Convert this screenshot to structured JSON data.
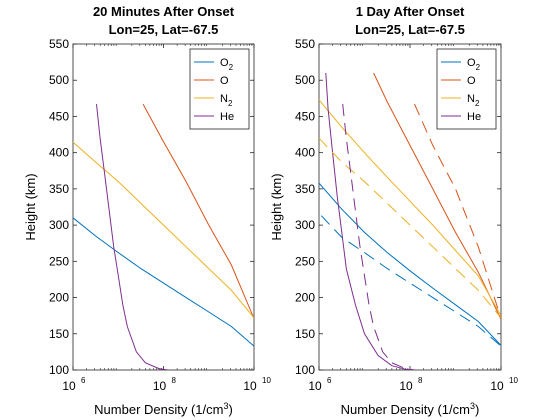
{
  "chart_data": [
    {
      "type": "line",
      "title_line1": "20 Minutes After Onset",
      "title_line2": "Lon=25, Lat=-67.5",
      "xlabel_main": "Number Density (1/cm",
      "xlabel_sup": "3",
      "xlabel_end": ")",
      "ylabel": "Height (km)",
      "xscale": "log",
      "xlim_exp": [
        6,
        10
      ],
      "ylim": [
        100,
        550
      ],
      "xticks": [
        {
          "base": "10",
          "exp": "6",
          "e": 6
        },
        {
          "base": "10",
          "exp": "8",
          "e": 8
        },
        {
          "base": "10",
          "exp": "10",
          "e": 10
        }
      ],
      "yticks": [
        100,
        150,
        200,
        250,
        300,
        350,
        400,
        450,
        500,
        550
      ],
      "legend_position": "top-right",
      "series": [
        {
          "name": "O",
          "name_sub": "2",
          "color": "#0072BD",
          "dash": "solid",
          "points": [
            [
              5.9,
              315
            ],
            [
              6.5,
              285
            ],
            [
              7.0,
              262
            ],
            [
              7.5,
              240
            ],
            [
              8.0,
              220
            ],
            [
              8.5,
              200
            ],
            [
              9.0,
              180
            ],
            [
              9.5,
              160
            ],
            [
              10.0,
              133
            ]
          ]
        },
        {
          "name": "O",
          "name_sub": "",
          "color": "#D95319",
          "dash": "solid",
          "points": [
            [
              7.55,
              467
            ],
            [
              8.0,
              415
            ],
            [
              8.5,
              360
            ],
            [
              9.0,
              300
            ],
            [
              9.5,
              245
            ],
            [
              10.0,
              171
            ]
          ]
        },
        {
          "name": "N",
          "name_sub": "2",
          "color": "#EDB120",
          "dash": "solid",
          "points": [
            [
              5.9,
              420
            ],
            [
              6.5,
              387
            ],
            [
              7.0,
              360
            ],
            [
              7.5,
              330
            ],
            [
              8.0,
              300
            ],
            [
              8.5,
              270
            ],
            [
              9.0,
              240
            ],
            [
              9.5,
              210
            ],
            [
              10.0,
              172
            ]
          ]
        },
        {
          "name": "He",
          "name_sub": "",
          "color": "#7E2F8E",
          "dash": "solid",
          "points": [
            [
              6.52,
              467
            ],
            [
              6.6,
              420
            ],
            [
              6.7,
              370
            ],
            [
              6.8,
              320
            ],
            [
              6.9,
              270
            ],
            [
              7.0,
              230
            ],
            [
              7.1,
              190
            ],
            [
              7.2,
              160
            ],
            [
              7.4,
              125
            ],
            [
              7.6,
              110
            ],
            [
              7.9,
              102
            ],
            [
              8.1,
              100
            ]
          ]
        }
      ]
    },
    {
      "type": "line",
      "title_line1": "1 Day After Onset",
      "title_line2": "Lon=25, Lat=-67.5",
      "xlabel_main": "Number Density (1/cm",
      "xlabel_sup": "3",
      "xlabel_end": ")",
      "ylabel": "Height (km)",
      "xscale": "log",
      "xlim_exp": [
        6,
        10
      ],
      "ylim": [
        100,
        550
      ],
      "xticks": [
        {
          "base": "10",
          "exp": "6",
          "e": 6
        },
        {
          "base": "10",
          "exp": "8",
          "e": 8
        },
        {
          "base": "10",
          "exp": "10",
          "e": 10
        }
      ],
      "yticks": [
        100,
        150,
        200,
        250,
        300,
        350,
        400,
        450,
        500,
        550
      ],
      "legend_position": "top-right",
      "series": [
        {
          "name": "O",
          "name_sub": "2",
          "color": "#0072BD",
          "dash": "solid",
          "points": [
            [
              6.0,
              358
            ],
            [
              6.5,
              322
            ],
            [
              7.0,
              290
            ],
            [
              7.5,
              262
            ],
            [
              8.0,
              237
            ],
            [
              8.5,
              213
            ],
            [
              9.0,
              190
            ],
            [
              9.5,
              167
            ],
            [
              10.0,
              134
            ]
          ]
        },
        {
          "name": "O",
          "name_sub": "",
          "color": "#D95319",
          "dash": "solid",
          "points": [
            [
              7.2,
              510
            ],
            [
              7.5,
              470
            ],
            [
              8.0,
              410
            ],
            [
              8.5,
              350
            ],
            [
              9.0,
              290
            ],
            [
              9.5,
              235
            ],
            [
              10.0,
              170
            ]
          ]
        },
        {
          "name": "N",
          "name_sub": "2",
          "color": "#EDB120",
          "dash": "solid",
          "points": [
            [
              6.0,
              473
            ],
            [
              6.5,
              435
            ],
            [
              7.0,
              400
            ],
            [
              7.5,
              366
            ],
            [
              8.0,
              333
            ],
            [
              8.5,
              300
            ],
            [
              9.0,
              265
            ],
            [
              9.5,
              230
            ],
            [
              10.0,
              175
            ]
          ]
        },
        {
          "name": "He",
          "name_sub": "",
          "color": "#7E2F8E",
          "dash": "solid",
          "points": [
            [
              6.15,
              510
            ],
            [
              6.2,
              460
            ],
            [
              6.3,
              400
            ],
            [
              6.4,
              340
            ],
            [
              6.5,
              290
            ],
            [
              6.6,
              240
            ],
            [
              6.8,
              190
            ],
            [
              7.0,
              150
            ],
            [
              7.3,
              120
            ],
            [
              7.6,
              106
            ],
            [
              7.9,
              101
            ],
            [
              8.1,
              100
            ]
          ]
        },
        {
          "name": "O",
          "name_sub": "2",
          "color": "#0072BD",
          "dash": "dashed",
          "points": [
            [
              6.05,
              313
            ],
            [
              6.5,
              283
            ],
            [
              7.0,
              262
            ],
            [
              7.5,
              240
            ],
            [
              8.0,
              220
            ],
            [
              8.5,
              200
            ],
            [
              9.0,
              180
            ],
            [
              9.5,
              160
            ],
            [
              10.0,
              133
            ]
          ]
        },
        {
          "name": "O",
          "name_sub": "",
          "color": "#D95319",
          "dash": "dashed",
          "points": [
            [
              8.1,
              467
            ],
            [
              8.5,
              410
            ],
            [
              9.0,
              350
            ],
            [
              9.5,
              270
            ],
            [
              10.0,
              171
            ]
          ]
        },
        {
          "name": "N",
          "name_sub": "2",
          "color": "#EDB120",
          "dash": "dashed",
          "points": [
            [
              6.0,
              420
            ],
            [
              6.5,
              387
            ],
            [
              7.0,
              360
            ],
            [
              7.5,
              330
            ],
            [
              8.0,
              300
            ],
            [
              8.5,
              270
            ],
            [
              9.0,
              240
            ],
            [
              9.5,
              210
            ],
            [
              10.0,
              172
            ]
          ]
        },
        {
          "name": "He",
          "name_sub": "",
          "color": "#7E2F8E",
          "dash": "dashed",
          "points": [
            [
              6.52,
              467
            ],
            [
              6.6,
              420
            ],
            [
              6.7,
              370
            ],
            [
              6.8,
              320
            ],
            [
              6.9,
              270
            ],
            [
              7.0,
              230
            ],
            [
              7.1,
              190
            ],
            [
              7.2,
              160
            ],
            [
              7.4,
              125
            ],
            [
              7.6,
              110
            ],
            [
              7.9,
              102
            ],
            [
              8.1,
              100
            ]
          ]
        }
      ]
    }
  ]
}
